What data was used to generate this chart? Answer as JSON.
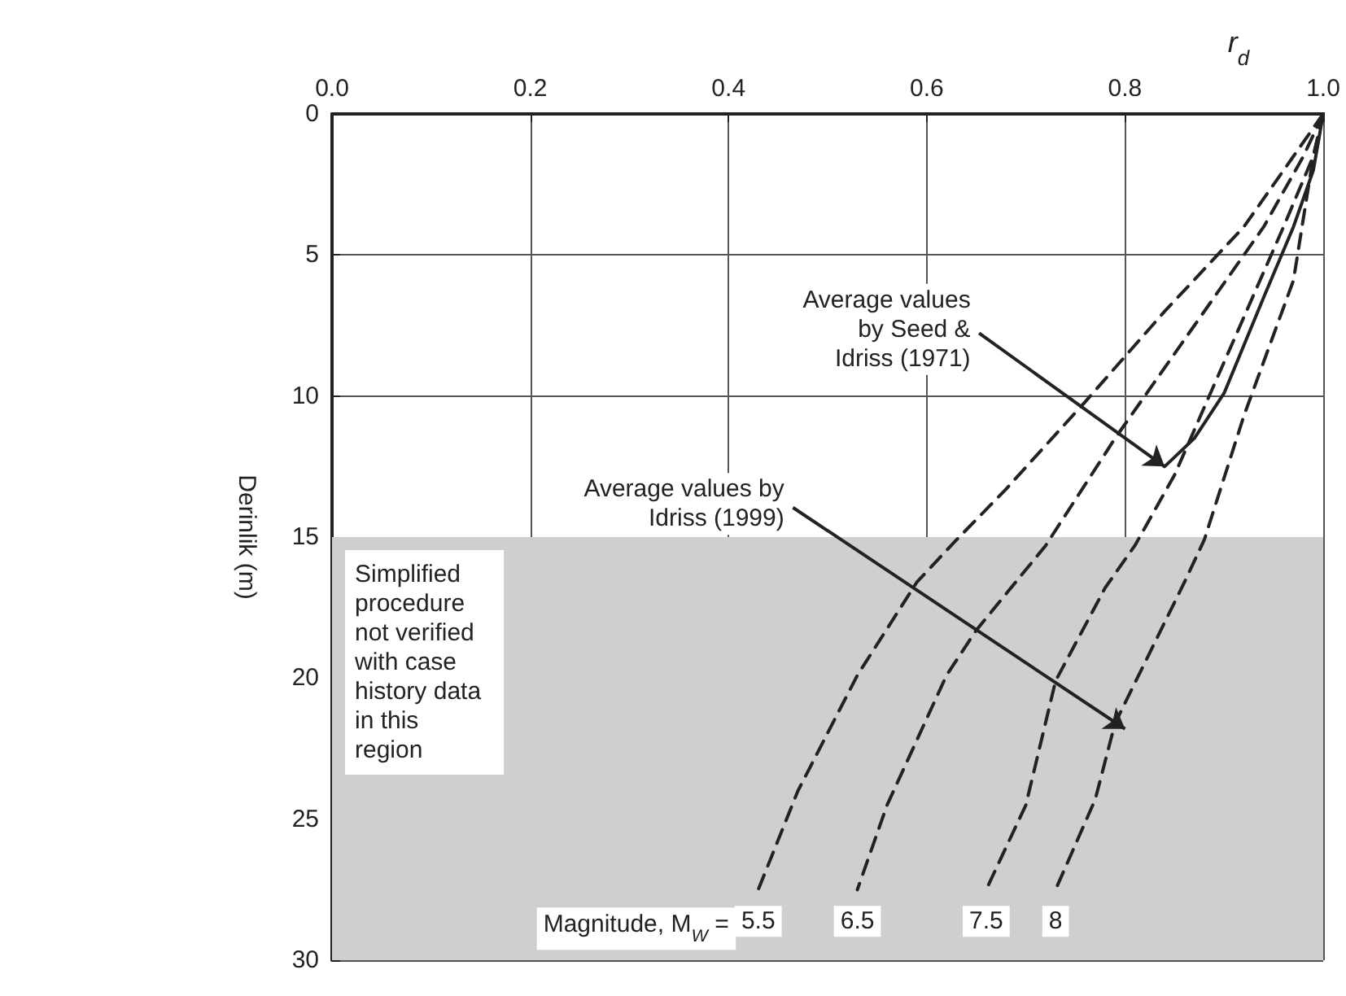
{
  "chart_data": {
    "type": "line",
    "xlabel": "r$_{d}$",
    "ylabel": "Derinlik (m)",
    "xlim": [
      0,
      1
    ],
    "xticks": [
      {
        "value": 0,
        "label": "0.0"
      },
      0.2,
      0.4,
      0.6,
      0.8,
      {
        "value": 1,
        "label": "1.0"
      }
    ],
    "ylim": [
      30,
      0
    ],
    "yticks": [
      0,
      5,
      10,
      15,
      20,
      25,
      30
    ],
    "grid": true,
    "marker": "none",
    "series": [
      {
        "name": "5.5",
        "color": "#222222",
        "line_style": "dashed",
        "x": [
          1,
          0.97,
          0.92,
          0.84,
          0.76,
          0.68,
          0.63,
          0.59,
          0.53,
          0.47,
          0.43
        ],
        "values": [
          0,
          1.5,
          4,
          7,
          10.2,
          13.3,
          15.1,
          16.6,
          19.9,
          24,
          27.5
        ]
      },
      {
        "name": "6.5",
        "color": "#222222",
        "line_style": "dashed",
        "x": [
          1,
          0.98,
          0.94,
          0.87,
          0.79,
          0.72,
          0.65,
          0.62,
          0.56,
          0.53
        ],
        "values": [
          0,
          1.5,
          4,
          7.5,
          11.5,
          15.3,
          18.3,
          19.9,
          24.5,
          27.5
        ]
      },
      {
        "name": "7.5",
        "color": "#222222",
        "line_style": "dashed",
        "x": [
          1,
          0.99,
          0.96,
          0.91,
          0.85,
          0.81,
          0.78,
          0.73,
          0.7,
          0.66
        ],
        "values": [
          0,
          1.5,
          4,
          8,
          12.8,
          15.3,
          16.8,
          20.1,
          24.5,
          27.5
        ]
      },
      {
        "name": "8",
        "color": "#222222",
        "line_style": "dashed",
        "x": [
          1,
          0.99,
          0.97,
          0.92,
          0.88,
          0.86,
          0.79,
          0.77,
          0.73
        ],
        "values": [
          0,
          1.5,
          5.9,
          10.7,
          15.1,
          16.6,
          21.6,
          24.3,
          27.5
        ]
      },
      {
        "color": "#222222",
        "line_style": "solid",
        "x": [
          1,
          0.99,
          0.97,
          0.94,
          0.9,
          0.87,
          0.84
        ],
        "values": [
          0,
          2,
          4,
          6.5,
          9.9,
          11.5,
          12.5
        ]
      }
    ],
    "bands": [
      {
        "axis": "y",
        "from": 15,
        "to": 30,
        "color": "#cfcfcf",
        "label": "Simplified\nprocedure\nnot verified\nwith case\nhistory data\nin this\nregion"
      }
    ],
    "annotations": [
      {
        "text": "Average values\nby Seed &\nIdriss (1971)",
        "x": 0.84,
        "y": 12.5
      },
      {
        "text": "Average values by\nIdriss (1999)",
        "x": 0.8,
        "y": 21.8
      },
      "Magnitude, M$_{W}$ ="
    ]
  }
}
